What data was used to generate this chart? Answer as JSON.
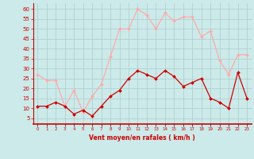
{
  "hours": [
    0,
    1,
    2,
    3,
    4,
    5,
    6,
    7,
    8,
    9,
    10,
    11,
    12,
    13,
    14,
    15,
    16,
    17,
    18,
    19,
    20,
    21,
    22,
    23
  ],
  "wind_avg": [
    11,
    11,
    13,
    11,
    7,
    9,
    6,
    11,
    16,
    19,
    25,
    29,
    27,
    25,
    29,
    26,
    21,
    23,
    25,
    15,
    13,
    10,
    28,
    15
  ],
  "wind_gust": [
    27,
    24,
    24,
    11,
    19,
    8,
    16,
    22,
    36,
    50,
    50,
    60,
    57,
    50,
    58,
    54,
    56,
    56,
    46,
    49,
    34,
    27,
    37,
    37
  ],
  "line_color_avg": "#cc0000",
  "line_color_gust": "#ffaaaa",
  "marker_color_avg": "#cc0000",
  "marker_color_gust": "#ffaaaa",
  "bg_color": "#cceae9",
  "grid_color": "#aacccc",
  "xlabel": "Vent moyen/en rafales ( km/h )",
  "xlabel_color": "#cc0000",
  "tick_color": "#cc0000",
  "axis_line_color": "#cc0000",
  "ylim": [
    2,
    63
  ],
  "yticks": [
    5,
    10,
    15,
    20,
    25,
    30,
    35,
    40,
    45,
    50,
    55,
    60
  ],
  "xlim": [
    -0.5,
    23.5
  ]
}
